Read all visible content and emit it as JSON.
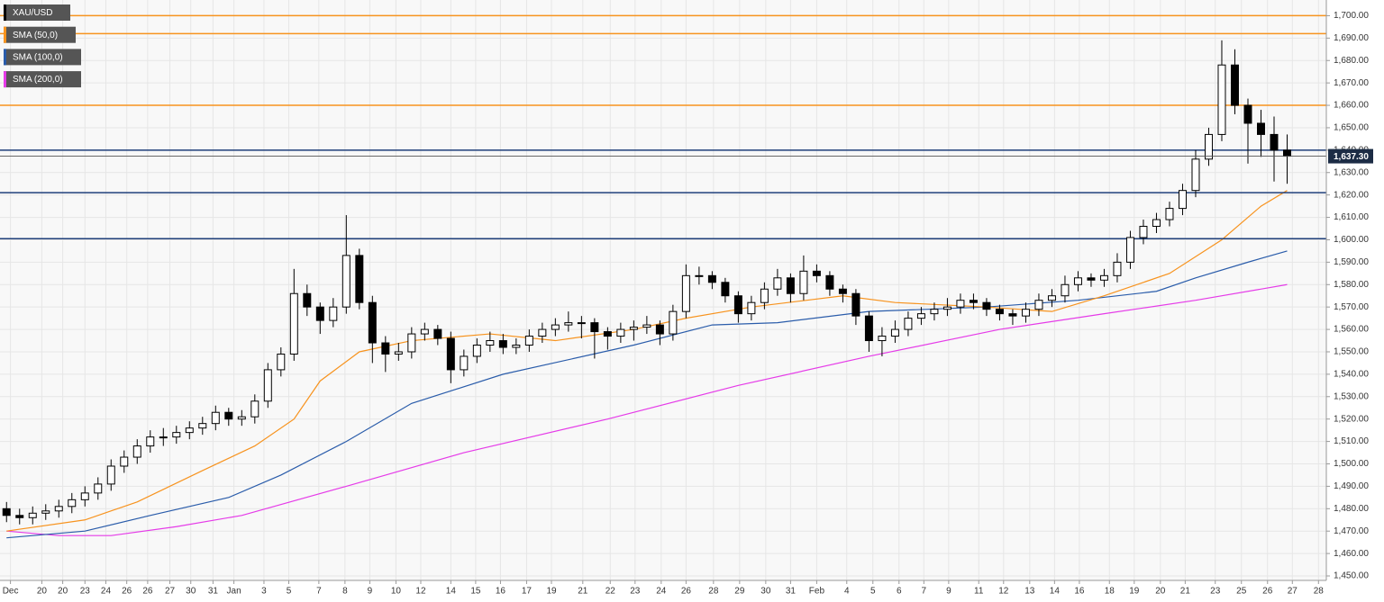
{
  "chart_data": {
    "type": "candlestick",
    "candles": {
      "name": "XAU/USD",
      "color": "#000000",
      "up_color": "#ffffff",
      "down_color": "#000000",
      "ohlc": [
        [
          1480,
          1483,
          1474,
          1477
        ],
        [
          1477,
          1480,
          1473,
          1476
        ],
        [
          1476,
          1481,
          1473,
          1478
        ],
        [
          1478,
          1482,
          1475,
          1479
        ],
        [
          1479,
          1484,
          1476,
          1481
        ],
        [
          1481,
          1487,
          1478,
          1484
        ],
        [
          1484,
          1490,
          1481,
          1487
        ],
        [
          1487,
          1494,
          1484,
          1491
        ],
        [
          1491,
          1502,
          1488,
          1499
        ],
        [
          1499,
          1506,
          1496,
          1503
        ],
        [
          1503,
          1511,
          1500,
          1508
        ],
        [
          1508,
          1515,
          1505,
          1512
        ],
        [
          1512,
          1516,
          1508,
          1512
        ],
        [
          1512,
          1517,
          1509,
          1514
        ],
        [
          1514,
          1519,
          1511,
          1516
        ],
        [
          1516,
          1521,
          1513,
          1518
        ],
        [
          1518,
          1526,
          1515,
          1523
        ],
        [
          1523,
          1525,
          1517,
          1520
        ],
        [
          1520,
          1524,
          1517,
          1521
        ],
        [
          1521,
          1531,
          1518,
          1528
        ],
        [
          1528,
          1545,
          1525,
          1542
        ],
        [
          1542,
          1552,
          1539,
          1549
        ],
        [
          1549,
          1587,
          1546,
          1576
        ],
        [
          1576,
          1580,
          1566,
          1570
        ],
        [
          1570,
          1572,
          1558,
          1564
        ],
        [
          1564,
          1574,
          1561,
          1570
        ],
        [
          1570,
          1611,
          1567,
          1593
        ],
        [
          1593,
          1596,
          1569,
          1572
        ],
        [
          1572,
          1575,
          1545,
          1554
        ],
        [
          1554,
          1557,
          1541,
          1549
        ],
        [
          1549,
          1554,
          1546,
          1550
        ],
        [
          1550,
          1561,
          1547,
          1558
        ],
        [
          1558,
          1563,
          1555,
          1560
        ],
        [
          1560,
          1562,
          1553,
          1556
        ],
        [
          1556,
          1559,
          1536,
          1542
        ],
        [
          1542,
          1551,
          1539,
          1548
        ],
        [
          1548,
          1556,
          1545,
          1553
        ],
        [
          1553,
          1559,
          1550,
          1555
        ],
        [
          1555,
          1558,
          1549,
          1552
        ],
        [
          1552,
          1556,
          1549,
          1553
        ],
        [
          1553,
          1560,
          1550,
          1557
        ],
        [
          1557,
          1563,
          1554,
          1560
        ],
        [
          1560,
          1565,
          1557,
          1562
        ],
        [
          1562,
          1568,
          1559,
          1563
        ],
        [
          1563,
          1566,
          1556,
          1563
        ],
        [
          1563,
          1565,
          1547,
          1559
        ],
        [
          1559,
          1561,
          1551,
          1557
        ],
        [
          1557,
          1563,
          1554,
          1560
        ],
        [
          1560,
          1564,
          1555,
          1561
        ],
        [
          1561,
          1566,
          1558,
          1562
        ],
        [
          1562,
          1564,
          1553,
          1558
        ],
        [
          1558,
          1571,
          1555,
          1568
        ],
        [
          1568,
          1589,
          1565,
          1584
        ],
        [
          1584,
          1588,
          1580,
          1584
        ],
        [
          1584,
          1586,
          1578,
          1581
        ],
        [
          1581,
          1583,
          1572,
          1575
        ],
        [
          1575,
          1577,
          1563,
          1567
        ],
        [
          1567,
          1575,
          1564,
          1572
        ],
        [
          1572,
          1581,
          1569,
          1578
        ],
        [
          1578,
          1587,
          1575,
          1583
        ],
        [
          1583,
          1585,
          1572,
          1576
        ],
        [
          1576,
          1593,
          1573,
          1586
        ],
        [
          1586,
          1589,
          1581,
          1584
        ],
        [
          1584,
          1586,
          1575,
          1578
        ],
        [
          1578,
          1580,
          1572,
          1576
        ],
        [
          1576,
          1578,
          1562,
          1566
        ],
        [
          1566,
          1568,
          1550,
          1555
        ],
        [
          1555,
          1561,
          1548,
          1557
        ],
        [
          1557,
          1564,
          1554,
          1560
        ],
        [
          1560,
          1568,
          1557,
          1565
        ],
        [
          1565,
          1570,
          1562,
          1567
        ],
        [
          1567,
          1572,
          1564,
          1569
        ],
        [
          1569,
          1574,
          1566,
          1570
        ],
        [
          1570,
          1576,
          1567,
          1573
        ],
        [
          1573,
          1576,
          1569,
          1572
        ],
        [
          1572,
          1574,
          1566,
          1569
        ],
        [
          1569,
          1571,
          1564,
          1567
        ],
        [
          1567,
          1569,
          1562,
          1566
        ],
        [
          1566,
          1572,
          1563,
          1569
        ],
        [
          1569,
          1576,
          1566,
          1573
        ],
        [
          1573,
          1578,
          1570,
          1575
        ],
        [
          1575,
          1584,
          1572,
          1580
        ],
        [
          1580,
          1586,
          1577,
          1583
        ],
        [
          1583,
          1585,
          1579,
          1582
        ],
        [
          1582,
          1587,
          1579,
          1584
        ],
        [
          1584,
          1594,
          1581,
          1590
        ],
        [
          1590,
          1604,
          1587,
          1601
        ],
        [
          1601,
          1609,
          1598,
          1606
        ],
        [
          1606,
          1612,
          1603,
          1609
        ],
        [
          1609,
          1617,
          1606,
          1614
        ],
        [
          1614,
          1625,
          1611,
          1622
        ],
        [
          1622,
          1640,
          1619,
          1636
        ],
        [
          1636,
          1650,
          1633,
          1647
        ],
        [
          1647,
          1689,
          1644,
          1678
        ],
        [
          1678,
          1685,
          1656,
          1660
        ],
        [
          1660,
          1663,
          1634,
          1652
        ],
        [
          1652,
          1658,
          1637,
          1647
        ],
        [
          1647,
          1655,
          1626,
          1640
        ],
        [
          1640,
          1647,
          1625,
          1637.3
        ]
      ]
    },
    "series": [
      {
        "name": "SMA (50,0)",
        "color": "#f7931e",
        "x": [
          0,
          6,
          10,
          15,
          19,
          22,
          24,
          27,
          31,
          37,
          42,
          48,
          52,
          57,
          64,
          68,
          75,
          80,
          84,
          89,
          93,
          96,
          98
        ],
        "values": [
          1470,
          1475,
          1483,
          1497,
          1508,
          1520,
          1537,
          1550,
          1555,
          1558,
          1555,
          1560,
          1565,
          1570,
          1575,
          1572,
          1570,
          1568,
          1575,
          1585,
          1600,
          1615,
          1622
        ]
      },
      {
        "name": "SMA (100,0)",
        "color": "#2a5caa",
        "x": [
          0,
          6,
          11,
          17,
          21,
          26,
          31,
          38,
          48,
          54,
          59,
          66,
          75,
          82,
          88,
          91,
          95,
          98
        ],
        "values": [
          1467,
          1470,
          1477,
          1485,
          1495,
          1510,
          1527,
          1540,
          1553,
          1562,
          1563,
          1568,
          1570,
          1573,
          1577,
          1583,
          1590,
          1595
        ]
      },
      {
        "name": "SMA (200,0)",
        "color": "#e53be8",
        "x": [
          0,
          4,
          8,
          13,
          18,
          26,
          35,
          46,
          56,
          66,
          76,
          84,
          91,
          98
        ],
        "values": [
          1470,
          1468,
          1468,
          1472,
          1477,
          1490,
          1505,
          1520,
          1535,
          1548,
          1560,
          1567,
          1573,
          1580
        ]
      }
    ],
    "levels": [
      {
        "value": 1700,
        "color": "#f7931e"
      },
      {
        "value": 1692,
        "color": "#f7931e"
      },
      {
        "value": 1660,
        "color": "#f7931e"
      },
      {
        "value": 1640,
        "color": "#1f3f7a"
      },
      {
        "value": 1621,
        "color": "#1f3f7a"
      },
      {
        "value": 1600.5,
        "color": "#1f3f7a"
      }
    ],
    "last_price": {
      "value": 1637.3,
      "label": "1,637.30",
      "color": "#1c2c45"
    },
    "xlim": [
      -0.5,
      101
    ],
    "ylim": [
      1448,
      1707
    ],
    "grid": true,
    "xticks": [
      {
        "value": 0.3,
        "label": "Dec"
      },
      {
        "value": 2.7,
        "label": "20"
      },
      {
        "value": 4.3,
        "label": "20"
      },
      {
        "value": 6.0,
        "label": "23"
      },
      {
        "value": 7.6,
        "label": "24"
      },
      {
        "value": 9.2,
        "label": "26"
      },
      {
        "value": 10.8,
        "label": "26"
      },
      {
        "value": 12.5,
        "label": "27"
      },
      {
        "value": 14.1,
        "label": "30"
      },
      {
        "value": 15.8,
        "label": "31"
      },
      {
        "value": 17.4,
        "label": "Jan"
      },
      {
        "value": 19.7,
        "label": "3"
      },
      {
        "value": 21.6,
        "label": "5"
      },
      {
        "value": 23.9,
        "label": "7"
      },
      {
        "value": 25.9,
        "label": "8"
      },
      {
        "value": 27.8,
        "label": "9"
      },
      {
        "value": 29.8,
        "label": "10"
      },
      {
        "value": 31.7,
        "label": "12"
      },
      {
        "value": 34.0,
        "label": "14"
      },
      {
        "value": 35.9,
        "label": "15"
      },
      {
        "value": 37.8,
        "label": "16"
      },
      {
        "value": 39.8,
        "label": "17"
      },
      {
        "value": 41.7,
        "label": "19"
      },
      {
        "value": 44.1,
        "label": "21"
      },
      {
        "value": 46.2,
        "label": "22"
      },
      {
        "value": 48.1,
        "label": "23"
      },
      {
        "value": 50.1,
        "label": "24"
      },
      {
        "value": 52.0,
        "label": "26"
      },
      {
        "value": 54.1,
        "label": "28"
      },
      {
        "value": 56.1,
        "label": "29"
      },
      {
        "value": 58.1,
        "label": "30"
      },
      {
        "value": 60.0,
        "label": "31"
      },
      {
        "value": 62.0,
        "label": "Feb"
      },
      {
        "value": 64.3,
        "label": "4"
      },
      {
        "value": 66.3,
        "label": "5"
      },
      {
        "value": 68.3,
        "label": "6"
      },
      {
        "value": 70.2,
        "label": "7"
      },
      {
        "value": 72.1,
        "label": "9"
      },
      {
        "value": 74.4,
        "label": "11"
      },
      {
        "value": 76.3,
        "label": "12"
      },
      {
        "value": 78.3,
        "label": "13"
      },
      {
        "value": 80.2,
        "label": "14"
      },
      {
        "value": 82.1,
        "label": "16"
      },
      {
        "value": 84.4,
        "label": "18"
      },
      {
        "value": 86.3,
        "label": "19"
      },
      {
        "value": 88.3,
        "label": "20"
      },
      {
        "value": 90.2,
        "label": "21"
      },
      {
        "value": 92.5,
        "label": "23"
      },
      {
        "value": 94.5,
        "label": "25"
      },
      {
        "value": 96.5,
        "label": "26"
      },
      {
        "value": 98.4,
        "label": "27"
      },
      {
        "value": 100.4,
        "label": "28"
      }
    ],
    "yticks": [
      {
        "value": 1450,
        "label": "1,450.00"
      },
      {
        "value": 1460,
        "label": "1,460.00"
      },
      {
        "value": 1470,
        "label": "1,470.00"
      },
      {
        "value": 1480,
        "label": "1,480.00"
      },
      {
        "value": 1490,
        "label": "1,490.00"
      },
      {
        "value": 1500,
        "label": "1,500.00"
      },
      {
        "value": 1510,
        "label": "1,510.00"
      },
      {
        "value": 1520,
        "label": "1,520.00"
      },
      {
        "value": 1530,
        "label": "1,530.00"
      },
      {
        "value": 1540,
        "label": "1,540.00"
      },
      {
        "value": 1550,
        "label": "1,550.00"
      },
      {
        "value": 1560,
        "label": "1,560.00"
      },
      {
        "value": 1570,
        "label": "1,570.00"
      },
      {
        "value": 1580,
        "label": "1,580.00"
      },
      {
        "value": 1590,
        "label": "1,590.00"
      },
      {
        "value": 1600,
        "label": "1,600.00"
      },
      {
        "value": 1610,
        "label": "1,610.00"
      },
      {
        "value": 1620,
        "label": "1,620.00"
      },
      {
        "value": 1630,
        "label": "1,630.00"
      },
      {
        "value": 1640,
        "label": "1,640.00"
      },
      {
        "value": 1650,
        "label": "1,650.00"
      },
      {
        "value": 1660,
        "label": "1,660.00"
      },
      {
        "value": 1670,
        "label": "1,670.00"
      },
      {
        "value": 1680,
        "label": "1,680.00"
      },
      {
        "value": 1690,
        "label": "1,690.00"
      },
      {
        "value": 1700,
        "label": "1,700.00"
      }
    ]
  }
}
